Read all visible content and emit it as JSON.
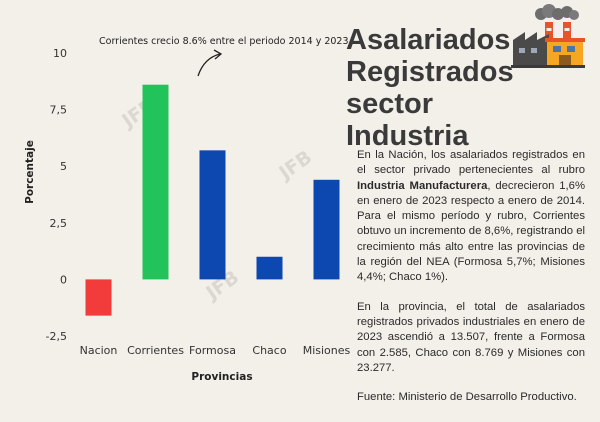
{
  "chart_data": {
    "type": "bar",
    "categories": [
      "Nacion",
      "Corrientes",
      "Formosa",
      "Chaco",
      "Misiones"
    ],
    "values": [
      -1.6,
      8.6,
      5.7,
      1.0,
      4.4
    ],
    "colors": [
      "#f23b3b",
      "#22c35a",
      "#0d47b0",
      "#0d47b0",
      "#0d47b0"
    ],
    "ylabel": "Porcentaje",
    "xlabel": "Provincias",
    "ylim": [
      -2.5,
      10
    ],
    "yticks": [
      "-2,5",
      "0",
      "2,5",
      "5",
      "7,5",
      "10"
    ],
    "ytick_values": [
      -2.5,
      0,
      2.5,
      5,
      7.5,
      10
    ],
    "annotation": "Corrientes crecio 8.6% entre el periodo 2014 y 2023",
    "grid": false
  },
  "watermark": "JFB",
  "title_lines": [
    "Asalariados",
    "Registrados",
    "sector Industria"
  ],
  "icon": "factory-icon",
  "paragraph1": {
    "before": "En la Nación, los asalariados registrados en el sector privado pertenecientes al rubro ",
    "bold": "Industria Manufacturera",
    "after": ", decrecieron 1,6% en enero de 2023 respecto a enero de 2014. Para el mismo período y rubro, Corrientes obtuvo un incremento de 8,6%, registrando el crecimiento más alto entre las provincias de la región del NEA (Formosa 5,7%; Misiones 4,4%; Chaco 1%)."
  },
  "paragraph2": "En la provincia, el total de asalariados registrados privados industriales en enero de 2023 ascendió a 13.507, frente a Formosa con 2.585, Chaco con 8.769 y Misiones con 23.277.",
  "source": "Fuente: Ministerio de Desarrollo Productivo."
}
